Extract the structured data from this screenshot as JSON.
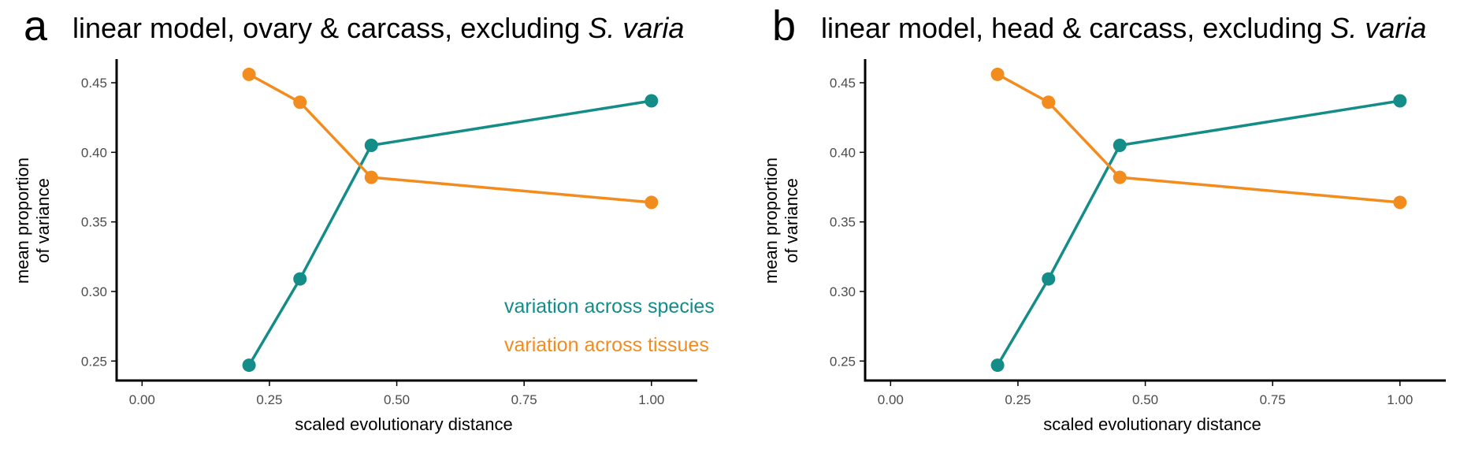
{
  "colors": {
    "species": "#148c87",
    "tissues": "#f28c1e",
    "axis": "#000000",
    "tick_text": "#4d4d4d"
  },
  "chart_data": [
    {
      "type": "line",
      "panel_letter": "a",
      "title": "linear model, ovary & carcass, excluding",
      "title_italic": "S. varia",
      "xlabel": "scaled evolutionary distance",
      "ylabel": [
        "mean proportion",
        "of variance"
      ],
      "xlim": [
        -0.05,
        1.09
      ],
      "ylim": [
        0.236,
        0.467
      ],
      "x_ticks": [
        0,
        0.25,
        0.5,
        0.75,
        1
      ],
      "x_tick_labels": [
        "0.00",
        "0.25",
        "0.50",
        "0.75",
        "1.00"
      ],
      "y_ticks": [
        0.25,
        0.3,
        0.35,
        0.4,
        0.45
      ],
      "y_tick_labels": [
        "0.25",
        "0.30",
        "0.35",
        "0.40",
        "0.45"
      ],
      "grid": false,
      "legend_position": "bottom-right",
      "show_legend": true,
      "series": [
        {
          "name": "variation across species",
          "color": "#148c87",
          "x": [
            0.21,
            0.31,
            0.45,
            1.0
          ],
          "values": [
            0.247,
            0.309,
            0.405,
            0.437
          ]
        },
        {
          "name": "variation across tissues",
          "color": "#f28c1e",
          "x": [
            0.21,
            0.31,
            0.45,
            1.0
          ],
          "values": [
            0.456,
            0.436,
            0.382,
            0.364
          ]
        }
      ]
    },
    {
      "type": "line",
      "panel_letter": "b",
      "title": "linear model, head & carcass, excluding",
      "title_italic": "S. varia",
      "xlabel": "scaled evolutionary distance",
      "ylabel": [
        "mean proportion",
        "of variance"
      ],
      "xlim": [
        -0.05,
        1.09
      ],
      "ylim": [
        0.236,
        0.467
      ],
      "x_ticks": [
        0,
        0.25,
        0.5,
        0.75,
        1
      ],
      "x_tick_labels": [
        "0.00",
        "0.25",
        "0.50",
        "0.75",
        "1.00"
      ],
      "y_ticks": [
        0.25,
        0.3,
        0.35,
        0.4,
        0.45
      ],
      "y_tick_labels": [
        "0.25",
        "0.30",
        "0.35",
        "0.40",
        "0.45"
      ],
      "grid": false,
      "show_legend": false,
      "series": [
        {
          "name": "variation across species",
          "color": "#148c87",
          "x": [
            0.21,
            0.31,
            0.45,
            1.0
          ],
          "values": [
            0.247,
            0.309,
            0.405,
            0.437
          ]
        },
        {
          "name": "variation across tissues",
          "color": "#f28c1e",
          "x": [
            0.21,
            0.31,
            0.45,
            1.0
          ],
          "values": [
            0.456,
            0.436,
            0.382,
            0.364
          ]
        }
      ]
    }
  ]
}
